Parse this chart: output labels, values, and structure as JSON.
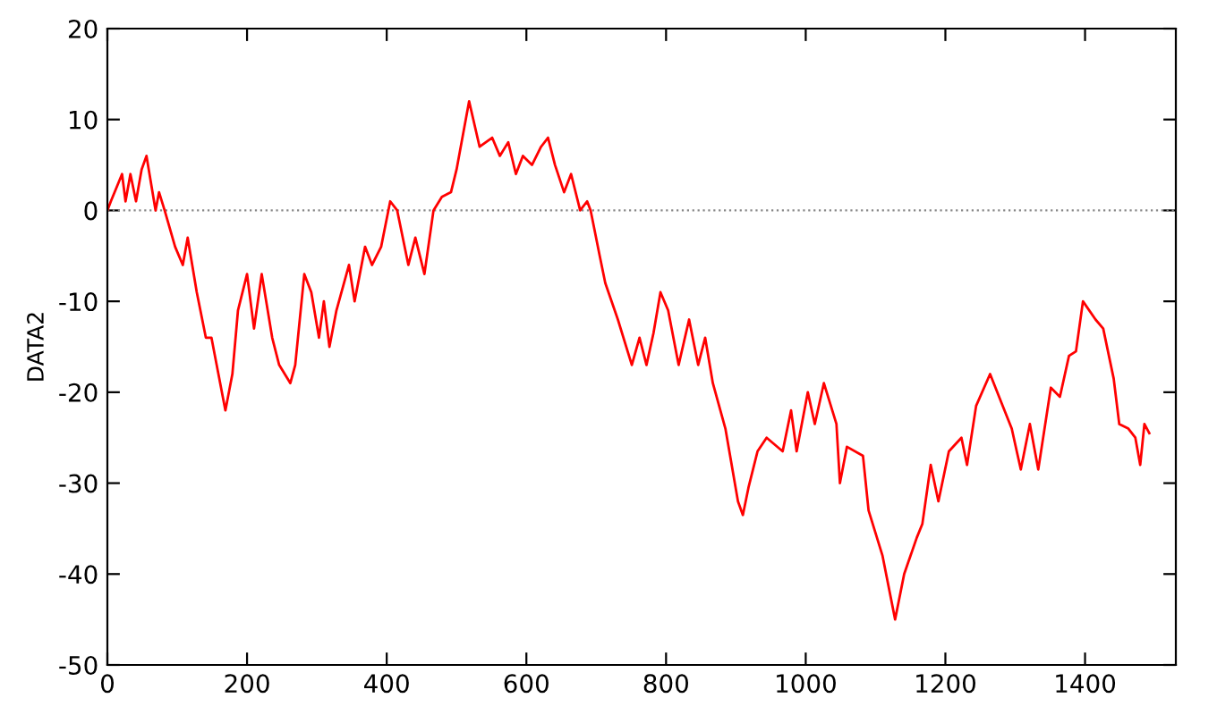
{
  "chart_data": {
    "type": "line",
    "ylabel": "DATA2",
    "x": [
      0,
      5,
      21,
      26,
      33,
      41,
      49,
      56,
      69,
      74,
      82,
      97,
      108,
      115,
      128,
      141,
      149,
      159,
      169,
      179,
      187,
      200,
      210,
      221,
      236,
      246,
      262,
      269,
      282,
      292,
      303,
      310,
      318,
      328,
      346,
      354,
      369,
      379,
      392,
      405,
      415,
      431,
      441,
      454,
      467,
      479,
      492,
      500,
      518,
      533,
      551,
      562,
      574,
      585,
      595,
      608,
      621,
      631,
      641,
      654,
      664,
      677,
      687,
      692,
      705,
      713,
      731,
      751,
      762,
      772,
      782,
      792,
      803,
      818,
      833,
      846,
      856,
      867,
      885,
      903,
      910,
      918,
      931,
      944,
      967,
      979,
      987,
      1003,
      1013,
      1026,
      1044,
      1049,
      1059,
      1082,
      1090,
      1110,
      1128,
      1141,
      1159,
      1167,
      1179,
      1190,
      1205,
      1223,
      1231,
      1244,
      1264,
      1282,
      1295,
      1308,
      1321,
      1333,
      1351,
      1364,
      1377,
      1387,
      1397,
      1415,
      1426,
      1441,
      1449,
      1462,
      1472,
      1479,
      1485,
      1492
    ],
    "series": [
      {
        "color": "#ff0000",
        "values": [
          0,
          1,
          4,
          1,
          4,
          1,
          4.5,
          6,
          0,
          2,
          0,
          -4,
          -6,
          -3,
          -9,
          -14,
          -14,
          -18,
          -22,
          -18,
          -11,
          -7,
          -13,
          -7,
          -14,
          -17,
          -19,
          -17,
          -7,
          -9,
          -14,
          -10,
          -15,
          -11,
          -6,
          -10,
          -4,
          -6,
          -4,
          1,
          0,
          -6,
          -3,
          -7,
          0,
          1.5,
          2,
          4.5,
          12,
          7,
          8,
          6,
          7.5,
          4,
          6,
          5,
          7,
          8,
          5,
          2,
          4,
          0,
          1,
          0,
          -5,
          -8,
          -12,
          -17,
          -14,
          -17,
          -13.5,
          -9,
          -11,
          -17,
          -12,
          -17,
          -14,
          -19,
          -24,
          -32,
          -33.5,
          -30.5,
          -26.5,
          -25,
          -26.5,
          -22,
          -26.5,
          -20,
          -23.5,
          -19,
          -23.5,
          -30,
          -26,
          -27,
          -33,
          -38,
          -45,
          -40,
          -36,
          -34.5,
          -28,
          -32,
          -26.5,
          -25,
          -28,
          -21.5,
          -18,
          -21.5,
          -24,
          -28.5,
          -23.5,
          -28.5,
          -19.5,
          -20.5,
          -16,
          -15.5,
          -10,
          -12,
          -13,
          -18.5,
          -23.5,
          -24,
          -25,
          -28,
          -23.5,
          -24.5
        ]
      }
    ],
    "xlim": [
      0,
      1530
    ],
    "xticks": [
      0,
      200,
      400,
      600,
      800,
      1000,
      1200,
      1400
    ],
    "ylim": [
      -50,
      20
    ],
    "yticks": [
      -50,
      -40,
      -30,
      -20,
      -10,
      0,
      10,
      20
    ],
    "ref_lines": [
      {
        "axis": "y",
        "value": 0,
        "color": "#888888",
        "line_style": "dotted"
      }
    ],
    "grid": false,
    "legend": false,
    "marker": "none",
    "line_style": "solid"
  }
}
